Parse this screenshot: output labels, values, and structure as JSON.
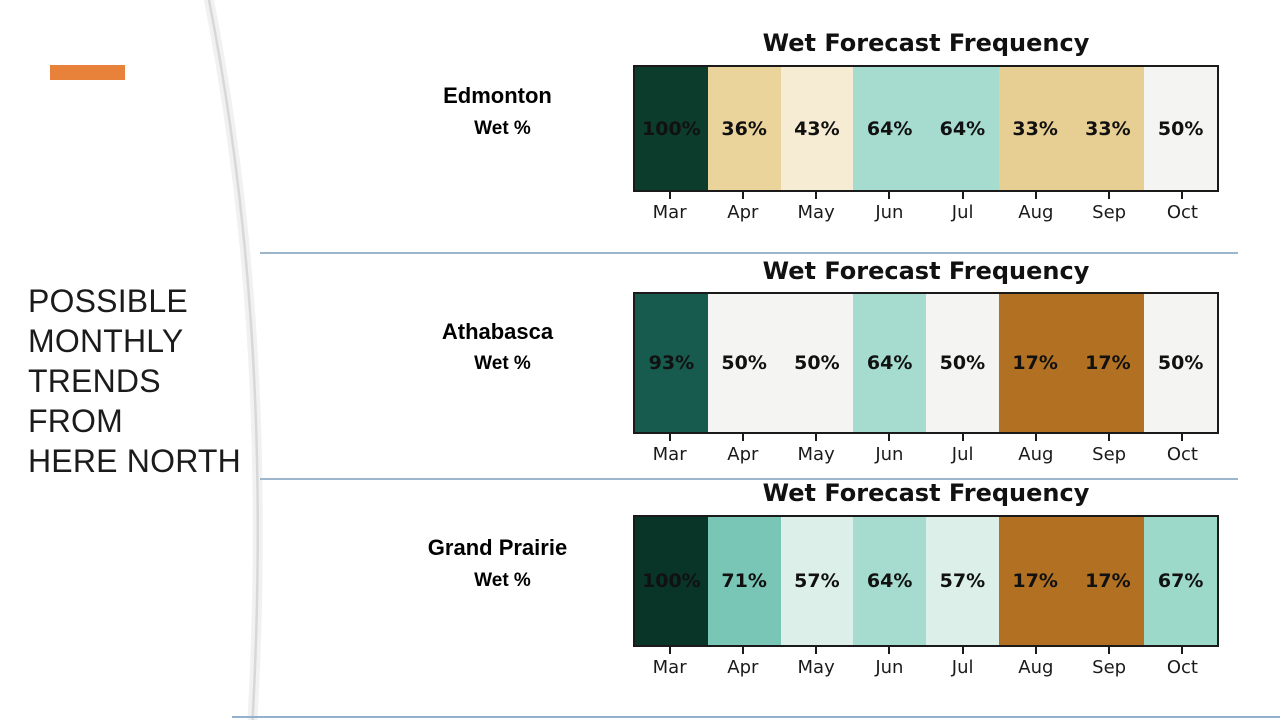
{
  "sidebar": {
    "accent_color": "#E8813A",
    "title_lines": [
      "POSSIBLE",
      "MONTHLY",
      "TRENDS FROM",
      "HERE NORTH"
    ]
  },
  "divider_color": "#9DB6CE",
  "chart_data": [
    {
      "type": "heatmap",
      "title": "Wet Forecast Frequency",
      "row_label": "Edmonton",
      "row_sublabel": "Wet %",
      "categories": [
        "Mar",
        "Apr",
        "May",
        "Jun",
        "Jul",
        "Aug",
        "Sep",
        "Oct"
      ],
      "values": [
        100,
        36,
        43,
        64,
        64,
        33,
        33,
        50
      ],
      "unit": "%",
      "cell_colors": [
        "#0C3C2C",
        "#EBD49C",
        "#F5ECD3",
        "#A6DCCF",
        "#A6DCCF",
        "#E7CE93",
        "#E7CE93",
        "#F4F4F2"
      ],
      "xlabel": "",
      "ylabel": "",
      "grid": false,
      "legend": false
    },
    {
      "type": "heatmap",
      "title": "Wet Forecast Frequency",
      "row_label": "Athabasca",
      "row_sublabel": "Wet %",
      "categories": [
        "Mar",
        "Apr",
        "May",
        "Jun",
        "Jul",
        "Aug",
        "Sep",
        "Oct"
      ],
      "values": [
        93,
        50,
        50,
        64,
        50,
        17,
        17,
        50
      ],
      "unit": "%",
      "cell_colors": [
        "#175A4E",
        "#F4F4F2",
        "#F4F4F2",
        "#A6DCCF",
        "#F4F4F2",
        "#B27122",
        "#B27122",
        "#F4F4F2"
      ],
      "xlabel": "",
      "ylabel": "",
      "grid": false,
      "legend": false
    },
    {
      "type": "heatmap",
      "title": "Wet Forecast Frequency",
      "row_label": "Grand Prairie",
      "row_sublabel": "Wet %",
      "categories": [
        "Mar",
        "Apr",
        "May",
        "Jun",
        "Jul",
        "Aug",
        "Sep",
        "Oct"
      ],
      "values": [
        100,
        71,
        57,
        64,
        57,
        17,
        17,
        67
      ],
      "unit": "%",
      "cell_colors": [
        "#083528",
        "#79C6B6",
        "#DCF0E9",
        "#A6DCCF",
        "#DCF0E9",
        "#B27122",
        "#B27122",
        "#9CD9C8"
      ],
      "xlabel": "",
      "ylabel": "",
      "grid": false,
      "legend": false
    }
  ]
}
